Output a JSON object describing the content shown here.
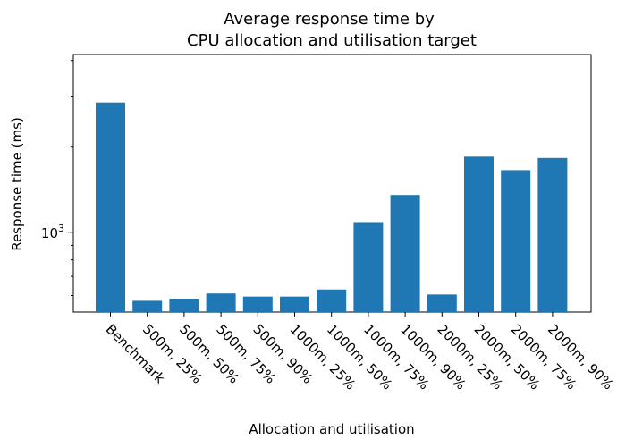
{
  "chart_data": {
    "type": "bar",
    "title_lines": [
      "Average response time by",
      "CPU allocation and utilisation target"
    ],
    "xlabel": "Allocation and utilisation",
    "ylabel": "Response time (ms)",
    "yscale": "log",
    "ylim": [
      525,
      4200
    ],
    "yticks": [
      {
        "value": 1000,
        "base": "10",
        "exp": "3"
      }
    ],
    "categories": [
      "Benchmark",
      "500m, 25%",
      "500m, 50%",
      "500m, 75%",
      "500m, 90%",
      "1000m, 25%",
      "1000m, 50%",
      "1000m, 75%",
      "1000m, 90%",
      "2000m, 25%",
      "2000m, 50%",
      "2000m, 75%",
      "2000m, 90%"
    ],
    "values": [
      2850,
      575,
      585,
      610,
      595,
      595,
      630,
      1085,
      1350,
      605,
      1840,
      1650,
      1820
    ],
    "color": "#1f77b4",
    "grid": false,
    "legend": "none"
  }
}
